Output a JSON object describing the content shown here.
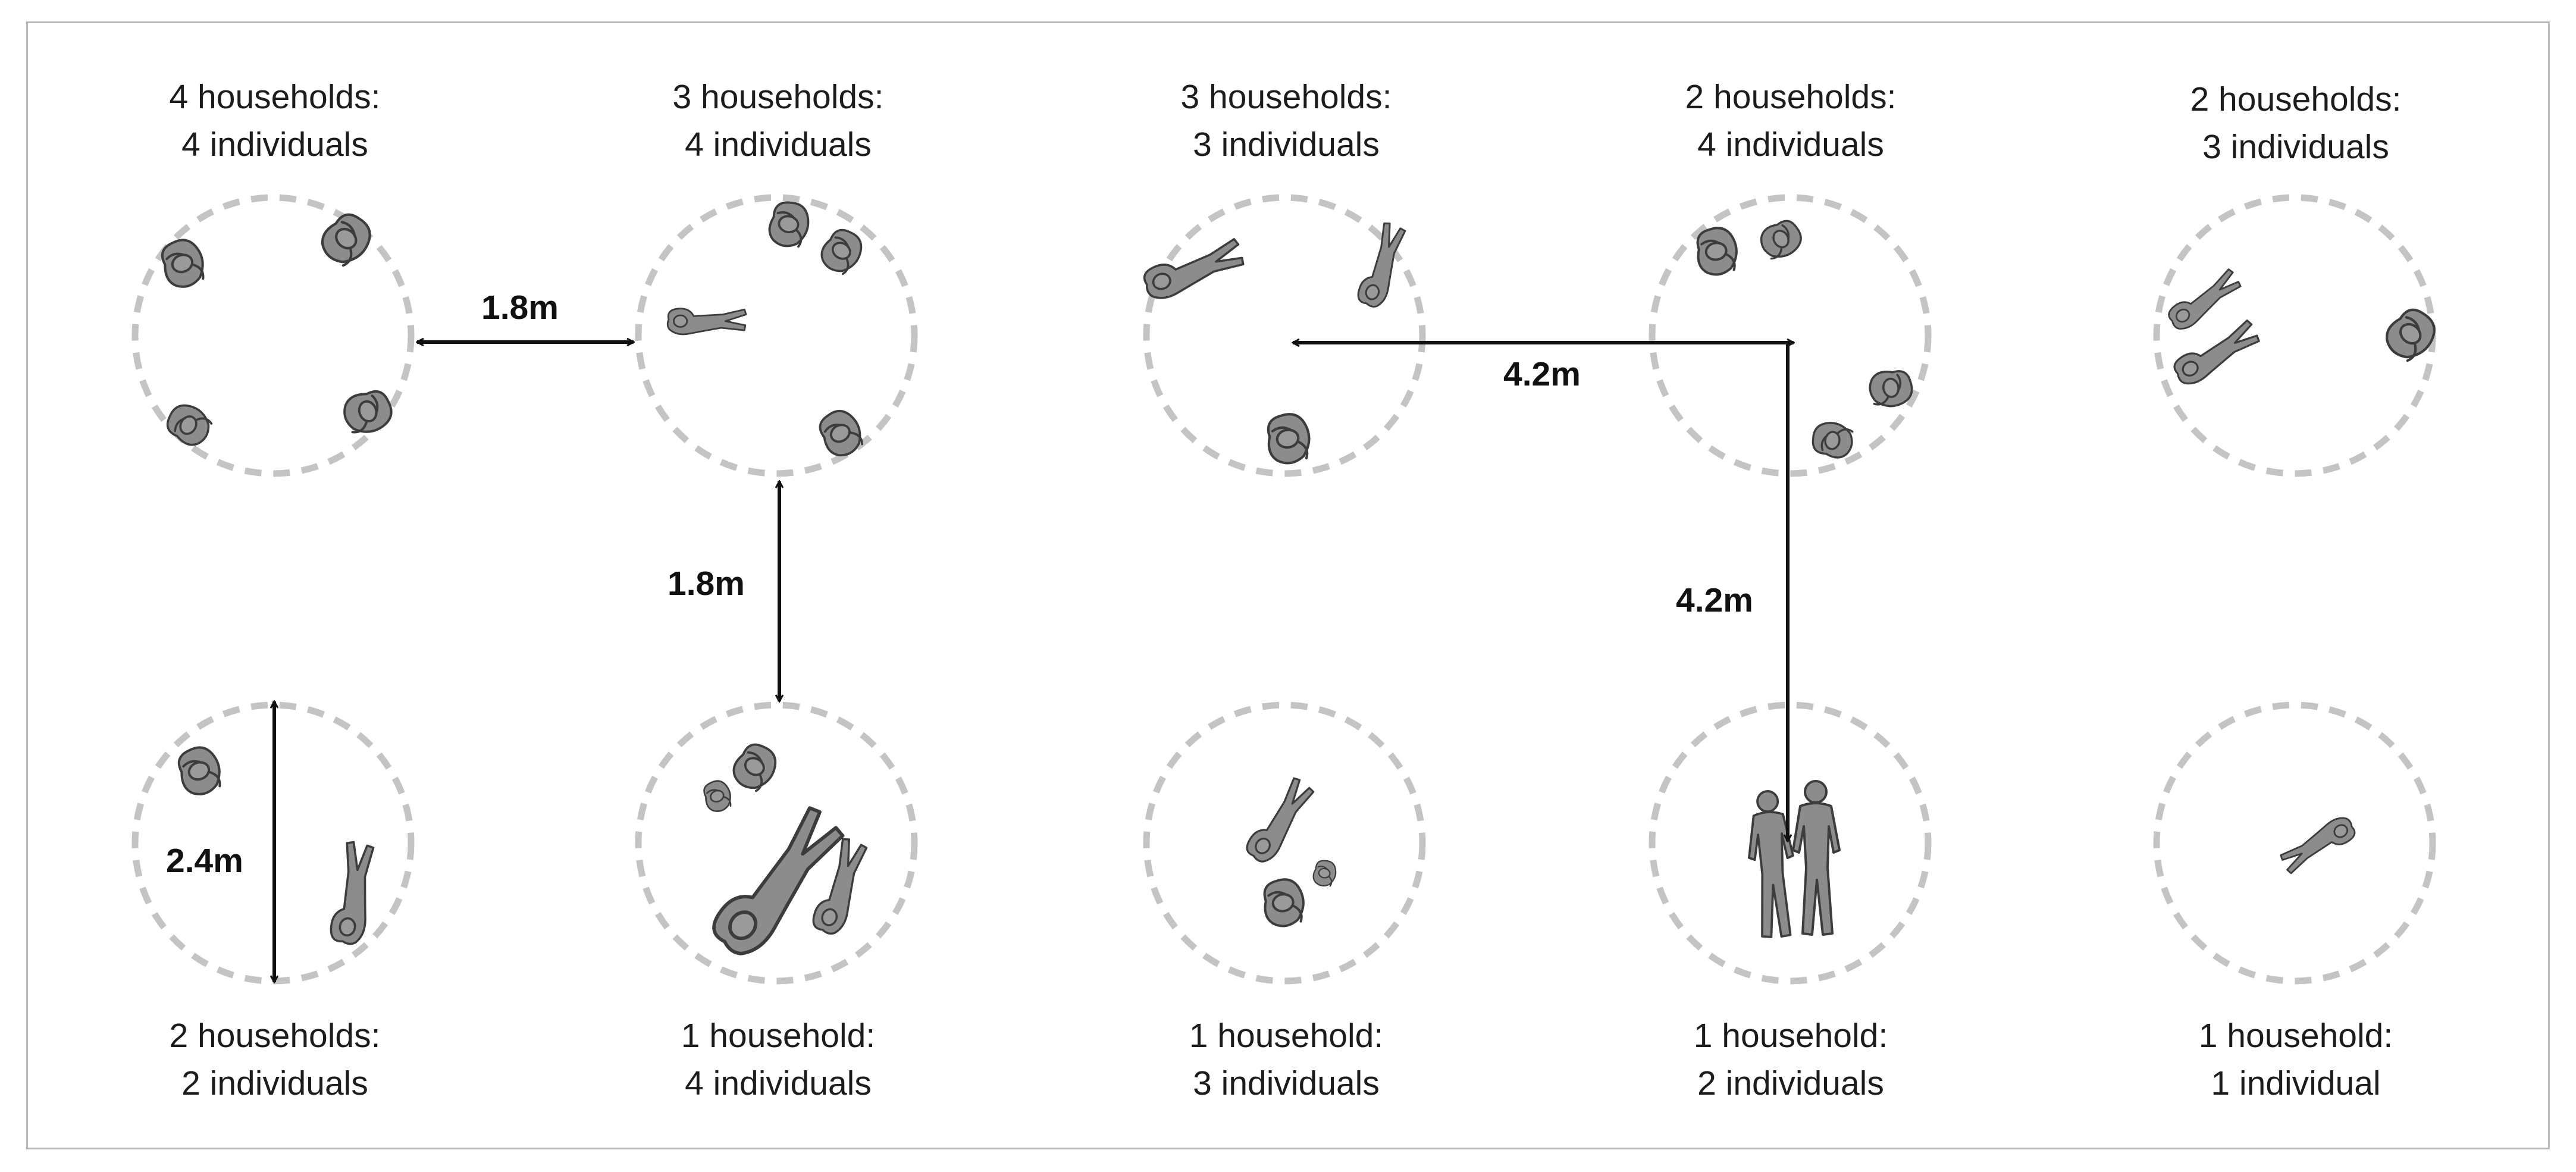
{
  "groups": [
    {
      "id": "g1",
      "line1": "4 households:",
      "line2": "4 individuals"
    },
    {
      "id": "g2",
      "line1": "3 households:",
      "line2": "4 individuals"
    },
    {
      "id": "g3",
      "line1": "3 households:",
      "line2": "3 individuals"
    },
    {
      "id": "g4",
      "line1": "2 households:",
      "line2": "4 individuals"
    },
    {
      "id": "g5",
      "line1": "2 households:",
      "line2": "3 individuals"
    },
    {
      "id": "g6",
      "line1": "2 households:",
      "line2": "2 individuals"
    },
    {
      "id": "g7",
      "line1": "1 household:",
      "line2": "4 individuals"
    },
    {
      "id": "g8",
      "line1": "1 household:",
      "line2": "3 individuals"
    },
    {
      "id": "g9",
      "line1": "1 household:",
      "line2": "2 individuals"
    },
    {
      "id": "g10",
      "line1": "1 household:",
      "line2": "1 individual"
    }
  ],
  "dimensions": {
    "horizontal_left": "1.8m",
    "vertical_left": "1.8m",
    "horizontal_right": "4.2m",
    "vertical_right": "4.2m",
    "circle_diameter": "2.4m"
  },
  "colors": {
    "circle_dash": "#c4c4c4",
    "figure_fill": "#8c8c8c",
    "figure_stroke": "#3c3c3c",
    "arrow": "#111111",
    "frame": "#b8b8b8"
  },
  "icons": [
    "person-top-view-icon",
    "standing-person-icon",
    "double-arrow-icon"
  ]
}
